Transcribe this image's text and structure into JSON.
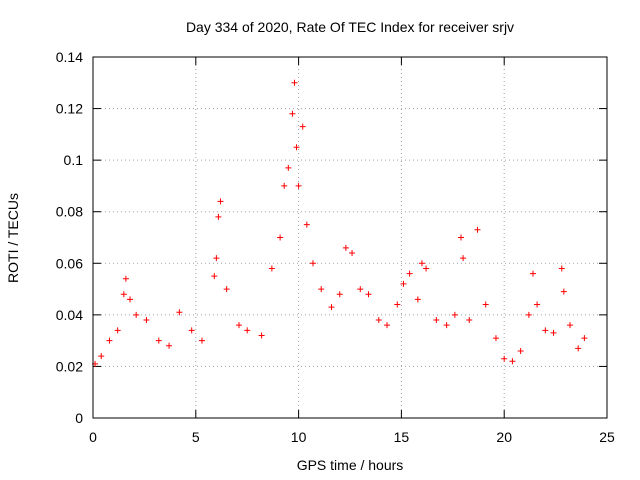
{
  "chart_data": {
    "type": "scatter",
    "title": "Day 334 of 2020, Rate Of TEC Index for receiver srjv",
    "xlabel": "GPS time / hours",
    "ylabel": "ROTI / TECUs",
    "xlim": [
      0,
      25
    ],
    "ylim": [
      0,
      0.14
    ],
    "x_ticks": [
      "0",
      "5",
      "10",
      "15",
      "20",
      "25"
    ],
    "y_ticks": [
      "0",
      "0.02",
      "0.04",
      "0.06",
      "0.08",
      "0.1",
      "0.12",
      "0.14"
    ],
    "grid": true,
    "marker": "+",
    "color": "#ff0000",
    "series": [
      {
        "name": "ROTI",
        "x": [
          0.1,
          0.4,
          0.8,
          1.2,
          1.5,
          1.6,
          1.8,
          2.1,
          2.6,
          3.2,
          3.7,
          4.2,
          4.8,
          5.3,
          5.9,
          6.0,
          6.1,
          6.2,
          6.5,
          7.1,
          7.5,
          8.2,
          8.7,
          9.1,
          9.3,
          9.5,
          9.7,
          9.8,
          9.9,
          10.0,
          10.2,
          10.4,
          10.7,
          11.1,
          11.6,
          12.0,
          12.3,
          12.6,
          13.0,
          13.4,
          13.9,
          14.3,
          14.8,
          15.1,
          15.4,
          15.8,
          16.0,
          16.2,
          16.7,
          17.2,
          17.6,
          17.9,
          18.0,
          18.3,
          18.7,
          19.1,
          19.6,
          20.0,
          20.4,
          20.8,
          21.2,
          21.4,
          21.6,
          22.0,
          22.4,
          22.8,
          22.9,
          23.2,
          23.6,
          23.9
        ],
        "y": [
          0.021,
          0.024,
          0.03,
          0.034,
          0.048,
          0.054,
          0.046,
          0.04,
          0.038,
          0.03,
          0.028,
          0.041,
          0.034,
          0.03,
          0.055,
          0.062,
          0.078,
          0.084,
          0.05,
          0.036,
          0.034,
          0.032,
          0.058,
          0.07,
          0.09,
          0.097,
          0.118,
          0.13,
          0.105,
          0.09,
          0.113,
          0.075,
          0.06,
          0.05,
          0.043,
          0.048,
          0.066,
          0.064,
          0.05,
          0.048,
          0.038,
          0.036,
          0.044,
          0.052,
          0.056,
          0.046,
          0.06,
          0.058,
          0.038,
          0.036,
          0.04,
          0.07,
          0.062,
          0.038,
          0.073,
          0.044,
          0.031,
          0.023,
          0.022,
          0.026,
          0.04,
          0.056,
          0.044,
          0.034,
          0.033,
          0.058,
          0.049,
          0.036,
          0.027,
          0.031
        ]
      }
    ]
  }
}
